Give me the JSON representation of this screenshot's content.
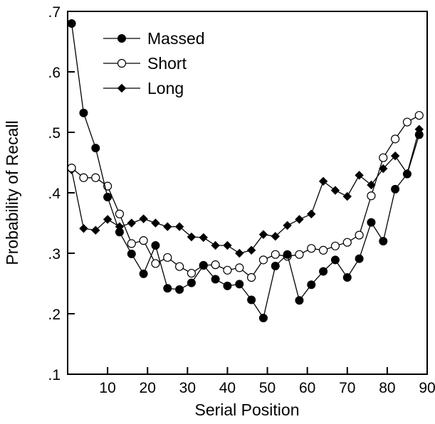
{
  "chart_data": {
    "type": "line",
    "xlabel": "Serial Position",
    "ylabel": "Probability of Recall",
    "xlim": [
      0,
      90
    ],
    "ylim": [
      0.1,
      0.7
    ],
    "x_ticks": [
      10,
      20,
      30,
      40,
      50,
      60,
      70,
      80,
      90
    ],
    "x_tick_labels": [
      "10",
      "20",
      "30",
      "40",
      "50",
      "60",
      "70",
      "80",
      "90"
    ],
    "y_ticks": [
      0.1,
      0.2,
      0.3,
      0.4,
      0.5,
      0.6,
      0.7
    ],
    "y_tick_labels": [
      ".1",
      ".2",
      ".3",
      ".4",
      ".5",
      ".6",
      ".7"
    ],
    "grid": false,
    "legend_position": "top-left",
    "x": [
      1,
      4,
      7,
      10,
      13,
      16,
      19,
      22,
      25,
      28,
      31,
      34,
      37,
      40,
      43,
      46,
      49,
      52,
      55,
      58,
      61,
      64,
      67,
      70,
      73,
      76,
      79,
      82,
      85,
      88
    ],
    "series": [
      {
        "name": "Massed",
        "marker": "filled-circle",
        "color": "#000000",
        "values": [
          0.68,
          0.532,
          0.474,
          0.393,
          0.335,
          0.299,
          0.266,
          0.313,
          0.242,
          0.24,
          0.251,
          0.28,
          0.257,
          0.246,
          0.249,
          0.223,
          0.193,
          0.279,
          0.298,
          0.222,
          0.248,
          0.27,
          0.289,
          0.26,
          0.291,
          0.351,
          0.32,
          0.406,
          0.431,
          0.496
        ]
      },
      {
        "name": "Short",
        "marker": "open-circle",
        "color": "#000000",
        "values": [
          0.441,
          0.425,
          0.425,
          0.411,
          0.365,
          0.316,
          0.321,
          0.283,
          0.293,
          0.278,
          0.267,
          0.28,
          0.281,
          0.272,
          0.276,
          0.26,
          0.289,
          0.298,
          0.295,
          0.298,
          0.308,
          0.305,
          0.312,
          0.318,
          0.33,
          0.395,
          0.458,
          0.489,
          0.517,
          0.528
        ]
      },
      {
        "name": "Long",
        "marker": "filled-diamond",
        "color": "#000000",
        "values": [
          0.438,
          0.341,
          0.338,
          0.356,
          0.344,
          0.35,
          0.357,
          0.35,
          0.344,
          0.344,
          0.327,
          0.326,
          0.313,
          0.313,
          0.3,
          0.305,
          0.331,
          0.328,
          0.346,
          0.356,
          0.365,
          0.419,
          0.404,
          0.394,
          0.429,
          0.413,
          0.44,
          0.461,
          0.432,
          0.505
        ]
      }
    ]
  }
}
